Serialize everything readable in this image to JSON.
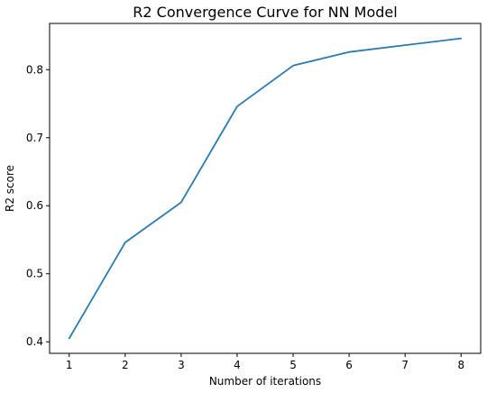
{
  "chart_data": {
    "type": "line",
    "title": "R2 Convergence Curve for NN Model",
    "xlabel": "Number of iterations",
    "ylabel": "R2 score",
    "x": [
      1,
      2,
      3,
      4,
      5,
      6,
      7,
      8
    ],
    "series": [
      {
        "values": [
          0.405,
          0.546,
          0.605,
          0.746,
          0.806,
          0.826,
          0.836,
          0.846
        ]
      }
    ],
    "xticks": [
      1,
      2,
      3,
      4,
      5,
      6,
      7,
      8
    ],
    "xtick_labels": [
      "1",
      "2",
      "3",
      "4",
      "5",
      "6",
      "7",
      "8"
    ],
    "yticks": [
      0.4,
      0.5,
      0.6,
      0.7,
      0.8
    ],
    "ytick_labels": [
      "0.4",
      "0.5",
      "0.6",
      "0.7",
      "0.8"
    ],
    "xlim": [
      0.65,
      8.35
    ],
    "ylim": [
      0.383,
      0.868
    ],
    "grid": false,
    "line_color": "#2a7ab0"
  }
}
